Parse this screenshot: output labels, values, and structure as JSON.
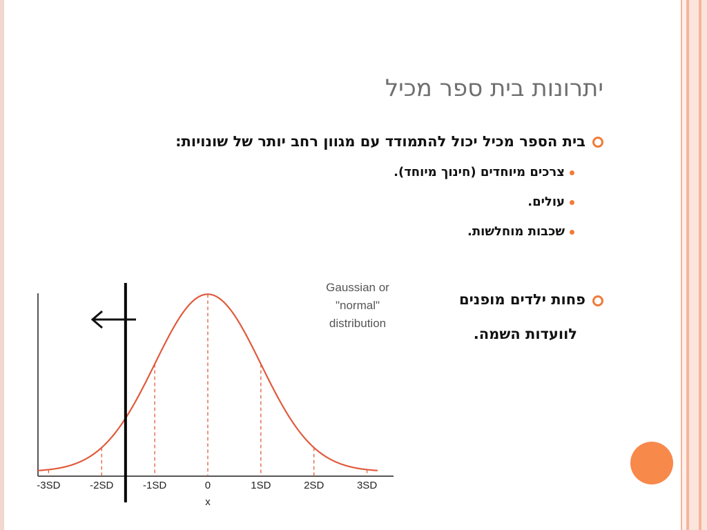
{
  "slide": {
    "title": "יתרונות בית ספר מכיל",
    "bullets": [
      {
        "text": "בית הספר מכיל יכול להתמודד עם מגוון רחב יותר של שונויות:",
        "subbullets": [
          "צרכים מיוחדים (חינוך מיוחד).",
          "עולים.",
          "שכבות מוחלשות."
        ]
      },
      {
        "line1": "פחות ילדים מופנים",
        "line2": "לוועדות השמה."
      }
    ]
  },
  "chart_data": {
    "type": "line",
    "title": "Gaussian or \"normal\" distribution",
    "title_lines": [
      "Gaussian or",
      "\"normal\"",
      "distribution"
    ],
    "xlabel": "x",
    "ylabel": "",
    "x_ticks": [
      "-3SD",
      "-2SD",
      "-1SD",
      "0",
      "1SD",
      "2SD",
      "3SD"
    ],
    "xlim": [
      -3.2,
      3.5
    ],
    "ylim": [
      0,
      1
    ],
    "dashed_lines_at": [
      -3,
      -2,
      -1,
      0,
      1,
      2,
      3
    ],
    "cutoff_line_x": -1.55,
    "arrow_direction": "left",
    "colors": {
      "curve": "#e05a3c",
      "cutoff": "#000000",
      "axis": "#555555"
    }
  },
  "theme": {
    "accent": "#f07b3a",
    "stripes": [
      "#fbe4db",
      "#f5b49a",
      "#fbe4db",
      "#f5b49a"
    ]
  }
}
